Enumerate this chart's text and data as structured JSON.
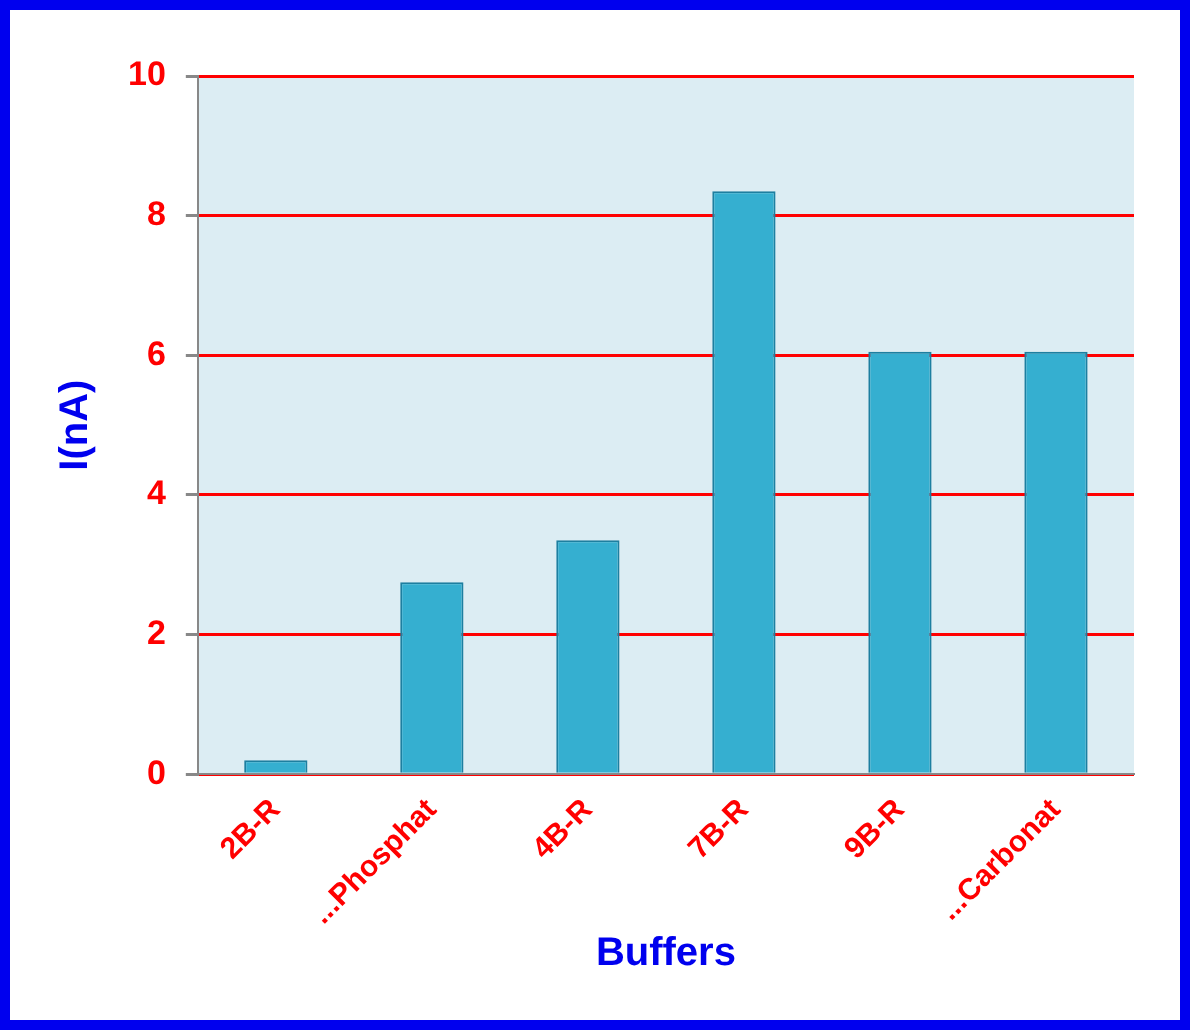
{
  "chart_data": {
    "type": "bar",
    "xlabel": "Buffers",
    "ylabel": "I(nA)",
    "categories": [
      "2B-R",
      "...Phosphat",
      "4B-R",
      "7B-R",
      "9B-R",
      "...Carbonat"
    ],
    "values": [
      0.2,
      2.75,
      3.35,
      8.35,
      6.05,
      6.05
    ],
    "color": "#35afd0",
    "ylim": [
      0,
      10
    ],
    "yticks": [
      0,
      2,
      4,
      6,
      8,
      10
    ],
    "grid": "y",
    "legend": false
  }
}
